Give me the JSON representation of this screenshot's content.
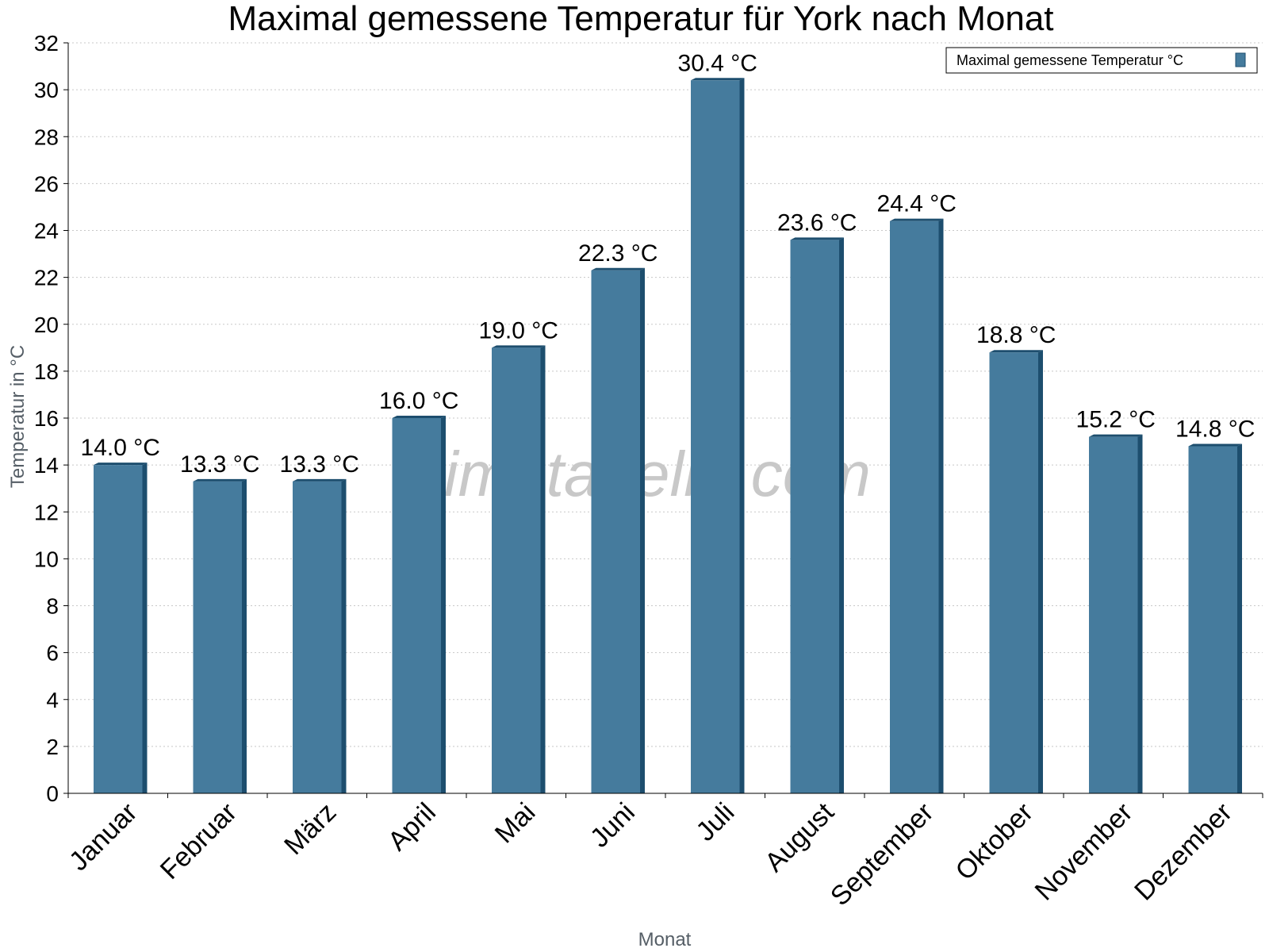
{
  "chart_data": {
    "type": "bar",
    "title": "Maximal gemessene Temperatur für York nach Monat",
    "xlabel": "Monat",
    "ylabel": "Temperatur in °C",
    "categories": [
      "Januar",
      "Februar",
      "März",
      "April",
      "Mai",
      "Juni",
      "Juli",
      "August",
      "September",
      "Oktober",
      "November",
      "Dezember"
    ],
    "series": [
      {
        "name": "Maximal gemessene Temperatur °C",
        "values": [
          14.0,
          13.3,
          13.3,
          16.0,
          19.0,
          22.3,
          30.4,
          23.6,
          24.4,
          18.8,
          15.2,
          14.8
        ],
        "data_labels": [
          "14.0 °C",
          "13.3 °C",
          "13.3 °C",
          "16.0 °C",
          "19.0 °C",
          "22.3 °C",
          "30.4 °C",
          "23.6 °C",
          "24.4 °C",
          "18.8 °C",
          "15.2 °C",
          "14.8 °C"
        ]
      }
    ],
    "ylim": [
      0,
      32
    ],
    "yticks": [
      0,
      2,
      4,
      6,
      8,
      10,
      12,
      14,
      16,
      18,
      20,
      22,
      24,
      26,
      28,
      30,
      32
    ],
    "grid": true,
    "legend_position": "top-right",
    "bar_color": "#457b9d",
    "bar_edge_color": "#1d4e6e",
    "watermark": "klimatabelle.com"
  }
}
